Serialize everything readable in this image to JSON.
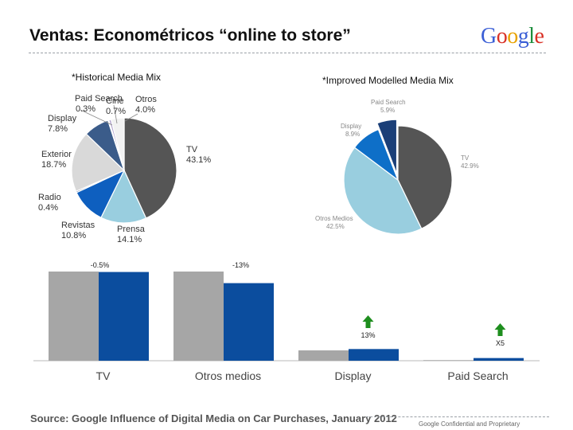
{
  "slide": {
    "title": "Ventas: Econométricos “online to store”",
    "logo_text": "Google",
    "logo_colors": [
      "#3b5fd6",
      "#d93025",
      "#e8a200",
      "#3b5fd6",
      "#1e8e3e",
      "#d93025"
    ],
    "source": "Source: Google Influence of Digital Media on Car Purchases, January 2012",
    "confidential": "Google Confidential and Proprietary"
  },
  "chart_data": [
    {
      "type": "pie",
      "title": "*Historical Media Mix",
      "slices": [
        {
          "label": "TV",
          "value_label": "43.1%",
          "value": 43.1,
          "color": "#555555"
        },
        {
          "label": "Prensa",
          "value_label": "14.1%",
          "value": 14.1,
          "color": "#99cedf"
        },
        {
          "label": "Revistas",
          "value_label": "10.8%",
          "value": 10.8,
          "color": "#0e5fbf"
        },
        {
          "label": "Radio",
          "value_label": "0.4%",
          "value": 0.4,
          "color": "#1b3f78"
        },
        {
          "label": "Exterior",
          "value_label": "18.7%",
          "value": 18.7,
          "color": "#d9d9d9"
        },
        {
          "label": "Display",
          "value_label": "7.8%",
          "value": 7.8,
          "color": "#3b5c8a"
        },
        {
          "label": "Paid Search",
          "value_label": "0.3%",
          "value": 0.3,
          "color": "#c0504d"
        },
        {
          "label": "Cine",
          "value_label": "0.7%",
          "value": 0.7,
          "color": "#b5a8d0"
        },
        {
          "label": "Otros",
          "value_label": "4.0%",
          "value": 4.0,
          "color": "#f2f2f2"
        }
      ]
    },
    {
      "type": "pie",
      "title": "*Improved Modelled Media Mix",
      "slices": [
        {
          "label": "TV",
          "value_label": "42.9%",
          "value": 42.9,
          "color": "#555555"
        },
        {
          "label": "Otros Medios",
          "value_label": "42.5%",
          "value": 42.5,
          "color": "#99cedf"
        },
        {
          "label": "Display",
          "value_label": "8.9%",
          "value": 8.9,
          "color": "#0e6fc8"
        },
        {
          "label": "Paid Search",
          "value_label": "5.9%",
          "value": 5.9,
          "color": "#1b3f78"
        }
      ]
    },
    {
      "type": "bar",
      "categories": [
        "TV",
        "Otros medios",
        "Display",
        "Paid Search"
      ],
      "series": [
        {
          "values": [
            100,
            100,
            11.6,
            0.6
          ],
          "color": "#a6a6a6"
        },
        {
          "values": [
            99.5,
            87,
            13.1,
            3
          ],
          "color": "#0b4d9e"
        }
      ],
      "change_labels": [
        "-0.5%",
        "-13%",
        "13%",
        "X5"
      ],
      "up_arrows": [
        false,
        false,
        true,
        true
      ],
      "arrow_color": "#1e8e1e"
    }
  ]
}
